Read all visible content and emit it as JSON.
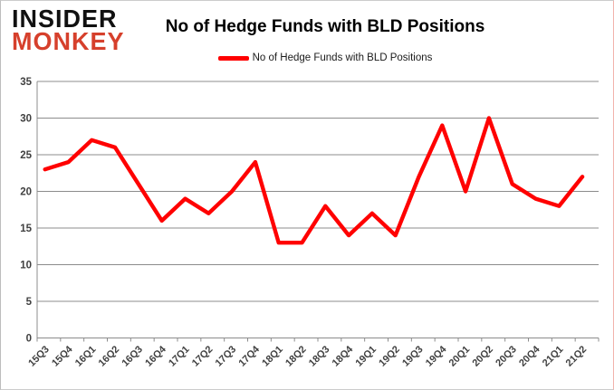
{
  "logo": {
    "line1": "INSIDER",
    "line2": "MONKEY"
  },
  "header": {
    "title": "No of Hedge Funds with BLD Positions"
  },
  "legend": {
    "label": "No of Hedge Funds with BLD Positions",
    "swatch_color": "#FF0000"
  },
  "chart_data": {
    "type": "line",
    "title": "No of Hedge Funds with BLD Positions",
    "categories": [
      "15Q3",
      "15Q4",
      "16Q1",
      "16Q2",
      "16Q3",
      "16Q4",
      "17Q1",
      "17Q2",
      "17Q3",
      "17Q4",
      "18Q1",
      "18Q2",
      "18Q3",
      "18Q4",
      "19Q1",
      "19Q2",
      "19Q3",
      "19Q4",
      "20Q1",
      "20Q2",
      "20Q3",
      "20Q4",
      "21Q1",
      "21Q2"
    ],
    "series": [
      {
        "name": "No of Hedge Funds with BLD Positions",
        "values": [
          23,
          24,
          27,
          26,
          21,
          16,
          19,
          17,
          20,
          24,
          13,
          13,
          18,
          14,
          17,
          14,
          22,
          29,
          20,
          30,
          21,
          19,
          18,
          22
        ]
      }
    ],
    "xlabel": "",
    "ylabel": "",
    "ylim": [
      0,
      35
    ],
    "yticks": [
      0,
      5,
      10,
      15,
      20,
      25,
      30,
      35
    ],
    "grid": true,
    "legend_position": "top",
    "line_color": "#FF0000",
    "gridline_color": "#8c8c8c",
    "axis_color": "#8c8c8c",
    "tick_label_color": "#404040"
  }
}
